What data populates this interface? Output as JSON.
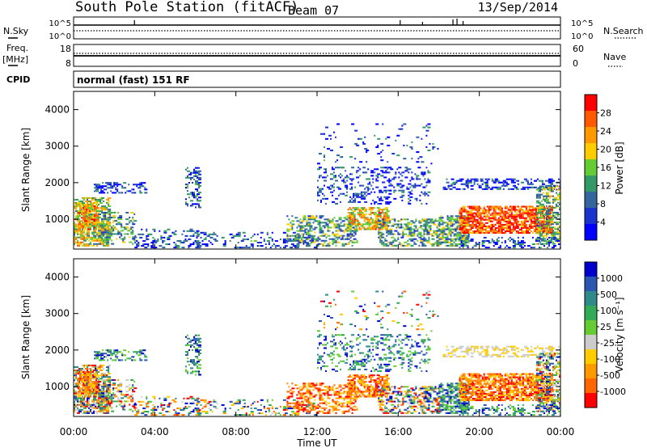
{
  "header": {
    "station": "South Pole Station (fitACF)",
    "beam": "Beam 07",
    "date": "13/Sep/2014"
  },
  "top_panels": {
    "nsky_label": "N.Sky",
    "nsearch_label": "N.Search",
    "noise_ticks": [
      "10^5",
      "10^0"
    ],
    "freq_label": "Freq.",
    "freq_unit": "[MHz]",
    "freq_ticks": [
      "18",
      "8"
    ],
    "nave_label": "Nave",
    "nave_ticks": [
      "60",
      "0"
    ],
    "cpid_label": "CPID",
    "cpid_value": "normal (fast) 151 RF"
  },
  "chart_data": [
    {
      "type": "heatmap",
      "title": "",
      "quantity": "Power",
      "colorbar_label": "Power [dB]",
      "colorbar_ticks": [
        "28",
        "24",
        "20",
        "16",
        "12",
        "8",
        "4"
      ],
      "colorbar_colors": [
        "#ff0000",
        "#ff5a00",
        "#ff9900",
        "#ffcc00",
        "#66cc33",
        "#339966",
        "#33669c",
        "#1a33cc",
        "#0000ff"
      ],
      "ylabel": "Slant Range [km]",
      "yticks": [
        "4000",
        "3000",
        "2000",
        "1000"
      ],
      "ylim": [
        180,
        4500
      ],
      "xlim": [
        0,
        24
      ],
      "grid": false
    },
    {
      "type": "heatmap",
      "title": "",
      "quantity": "Velocity",
      "colorbar_label": "Velocity [m s⁻¹]",
      "colorbar_ticks": [
        "1000",
        "500",
        "100",
        "25",
        "-25",
        "-100",
        "-500",
        "-1000"
      ],
      "colorbar_colors": [
        "#0000cc",
        "#2a55b0",
        "#2f8a8a",
        "#33aa55",
        "#66cc33",
        "#cccccc",
        "#ffcc00",
        "#ff9900",
        "#ff6600",
        "#ff0000"
      ],
      "ylabel": "Slant Range [km]",
      "yticks": [
        "4000",
        "3000",
        "2000",
        "1000"
      ],
      "ylim": [
        180,
        4500
      ],
      "xlim": [
        0,
        24
      ],
      "xlabel": "Time UT",
      "xticks": [
        "00:00",
        "04:00",
        "08:00",
        "12:00",
        "16:00",
        "20:00",
        "00:00"
      ],
      "grid": false
    }
  ]
}
